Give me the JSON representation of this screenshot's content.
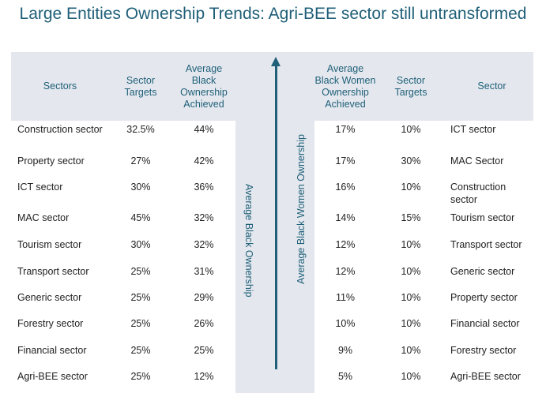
{
  "title": "Large Entities Ownership Trends: Agri-BEE sector still untransformed",
  "headers": {
    "sectors": "Sectors",
    "sector_targets_left": "Sector Targets",
    "avg_black": "Average Black Ownership Achieved",
    "avg_black_women": "Average Black Women Ownership Achieved",
    "sector_targets_right": "Sector Targets",
    "sector": "Sector"
  },
  "vertical_labels": {
    "black": "Average Black Ownership",
    "black_women": "Average Black Women Ownership"
  },
  "rows": [
    {
      "l_sector": "Construction sector",
      "l_target": "32.5%",
      "l_black": "44%",
      "r_women": "17%",
      "r_target": "10%",
      "r_sector": "ICT sector"
    },
    {
      "l_sector": "Property sector",
      "l_target": "27%",
      "l_black": "42%",
      "r_women": "17%",
      "r_target": "30%",
      "r_sector": "MAC Sector"
    },
    {
      "l_sector": "ICT sector",
      "l_target": "30%",
      "l_black": "36%",
      "r_women": "16%",
      "r_target": "10%",
      "r_sector": "Construction sector"
    },
    {
      "l_sector": "MAC sector",
      "l_target": "45%",
      "l_black": "32%",
      "r_women": "14%",
      "r_target": "15%",
      "r_sector": "Tourism sector"
    },
    {
      "l_sector": "Tourism sector",
      "l_target": "30%",
      "l_black": "32%",
      "r_women": "12%",
      "r_target": "10%",
      "r_sector": "Transport sector"
    },
    {
      "l_sector": "Transport sector",
      "l_target": "25%",
      "l_black": "31%",
      "r_women": "12%",
      "r_target": "10%",
      "r_sector": "Generic sector"
    },
    {
      "l_sector": "Generic sector",
      "l_target": "25%",
      "l_black": "29%",
      "r_women": "11%",
      "r_target": "10%",
      "r_sector": "Property sector"
    },
    {
      "l_sector": "Forestry sector",
      "l_target": "25%",
      "l_black": "26%",
      "r_women": "10%",
      "r_target": "10%",
      "r_sector": "Financial sector"
    },
    {
      "l_sector": "Financial sector",
      "l_target": "25%",
      "l_black": "25%",
      "r_women": "9%",
      "r_target": "10%",
      "r_sector": "Forestry sector"
    },
    {
      "l_sector": "Agri-BEE sector",
      "l_target": "25%",
      "l_black": "12%",
      "r_women": "5%",
      "r_target": "10%",
      "r_sector": "Agri-BEE sector"
    }
  ],
  "colors": {
    "accent": "#1f5f78",
    "band": "#e4e8ee"
  }
}
